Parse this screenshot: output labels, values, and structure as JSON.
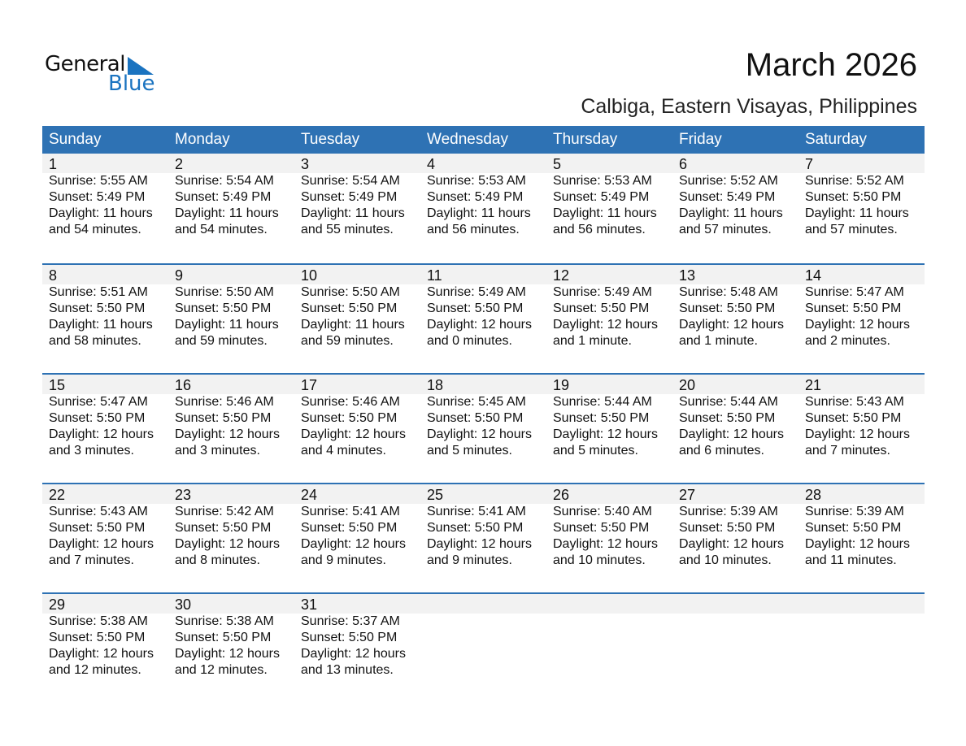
{
  "logo": {
    "text1": "General",
    "text2": "Blue",
    "color": "#1a73c0"
  },
  "header": {
    "title": "March 2026",
    "subtitle": "Calbiga, Eastern Visayas, Philippines"
  },
  "colors": {
    "accent": "#2e72b4",
    "band": "#f2f2f2"
  },
  "weekdays": [
    "Sunday",
    "Monday",
    "Tuesday",
    "Wednesday",
    "Thursday",
    "Friday",
    "Saturday"
  ],
  "weeks": [
    [
      {
        "d": "1",
        "sr": "Sunrise: 5:55 AM",
        "ss": "Sunset: 5:49 PM",
        "dl": "Daylight: 11 hours",
        "dm": "and 54 minutes."
      },
      {
        "d": "2",
        "sr": "Sunrise: 5:54 AM",
        "ss": "Sunset: 5:49 PM",
        "dl": "Daylight: 11 hours",
        "dm": "and 54 minutes."
      },
      {
        "d": "3",
        "sr": "Sunrise: 5:54 AM",
        "ss": "Sunset: 5:49 PM",
        "dl": "Daylight: 11 hours",
        "dm": "and 55 minutes."
      },
      {
        "d": "4",
        "sr": "Sunrise: 5:53 AM",
        "ss": "Sunset: 5:49 PM",
        "dl": "Daylight: 11 hours",
        "dm": "and 56 minutes."
      },
      {
        "d": "5",
        "sr": "Sunrise: 5:53 AM",
        "ss": "Sunset: 5:49 PM",
        "dl": "Daylight: 11 hours",
        "dm": "and 56 minutes."
      },
      {
        "d": "6",
        "sr": "Sunrise: 5:52 AM",
        "ss": "Sunset: 5:49 PM",
        "dl": "Daylight: 11 hours",
        "dm": "and 57 minutes."
      },
      {
        "d": "7",
        "sr": "Sunrise: 5:52 AM",
        "ss": "Sunset: 5:50 PM",
        "dl": "Daylight: 11 hours",
        "dm": "and 57 minutes."
      }
    ],
    [
      {
        "d": "8",
        "sr": "Sunrise: 5:51 AM",
        "ss": "Sunset: 5:50 PM",
        "dl": "Daylight: 11 hours",
        "dm": "and 58 minutes."
      },
      {
        "d": "9",
        "sr": "Sunrise: 5:50 AM",
        "ss": "Sunset: 5:50 PM",
        "dl": "Daylight: 11 hours",
        "dm": "and 59 minutes."
      },
      {
        "d": "10",
        "sr": "Sunrise: 5:50 AM",
        "ss": "Sunset: 5:50 PM",
        "dl": "Daylight: 11 hours",
        "dm": "and 59 minutes."
      },
      {
        "d": "11",
        "sr": "Sunrise: 5:49 AM",
        "ss": "Sunset: 5:50 PM",
        "dl": "Daylight: 12 hours",
        "dm": "and 0 minutes."
      },
      {
        "d": "12",
        "sr": "Sunrise: 5:49 AM",
        "ss": "Sunset: 5:50 PM",
        "dl": "Daylight: 12 hours",
        "dm": "and 1 minute."
      },
      {
        "d": "13",
        "sr": "Sunrise: 5:48 AM",
        "ss": "Sunset: 5:50 PM",
        "dl": "Daylight: 12 hours",
        "dm": "and 1 minute."
      },
      {
        "d": "14",
        "sr": "Sunrise: 5:47 AM",
        "ss": "Sunset: 5:50 PM",
        "dl": "Daylight: 12 hours",
        "dm": "and 2 minutes."
      }
    ],
    [
      {
        "d": "15",
        "sr": "Sunrise: 5:47 AM",
        "ss": "Sunset: 5:50 PM",
        "dl": "Daylight: 12 hours",
        "dm": "and 3 minutes."
      },
      {
        "d": "16",
        "sr": "Sunrise: 5:46 AM",
        "ss": "Sunset: 5:50 PM",
        "dl": "Daylight: 12 hours",
        "dm": "and 3 minutes."
      },
      {
        "d": "17",
        "sr": "Sunrise: 5:46 AM",
        "ss": "Sunset: 5:50 PM",
        "dl": "Daylight: 12 hours",
        "dm": "and 4 minutes."
      },
      {
        "d": "18",
        "sr": "Sunrise: 5:45 AM",
        "ss": "Sunset: 5:50 PM",
        "dl": "Daylight: 12 hours",
        "dm": "and 5 minutes."
      },
      {
        "d": "19",
        "sr": "Sunrise: 5:44 AM",
        "ss": "Sunset: 5:50 PM",
        "dl": "Daylight: 12 hours",
        "dm": "and 5 minutes."
      },
      {
        "d": "20",
        "sr": "Sunrise: 5:44 AM",
        "ss": "Sunset: 5:50 PM",
        "dl": "Daylight: 12 hours",
        "dm": "and 6 minutes."
      },
      {
        "d": "21",
        "sr": "Sunrise: 5:43 AM",
        "ss": "Sunset: 5:50 PM",
        "dl": "Daylight: 12 hours",
        "dm": "and 7 minutes."
      }
    ],
    [
      {
        "d": "22",
        "sr": "Sunrise: 5:43 AM",
        "ss": "Sunset: 5:50 PM",
        "dl": "Daylight: 12 hours",
        "dm": "and 7 minutes."
      },
      {
        "d": "23",
        "sr": "Sunrise: 5:42 AM",
        "ss": "Sunset: 5:50 PM",
        "dl": "Daylight: 12 hours",
        "dm": "and 8 minutes."
      },
      {
        "d": "24",
        "sr": "Sunrise: 5:41 AM",
        "ss": "Sunset: 5:50 PM",
        "dl": "Daylight: 12 hours",
        "dm": "and 9 minutes."
      },
      {
        "d": "25",
        "sr": "Sunrise: 5:41 AM",
        "ss": "Sunset: 5:50 PM",
        "dl": "Daylight: 12 hours",
        "dm": "and 9 minutes."
      },
      {
        "d": "26",
        "sr": "Sunrise: 5:40 AM",
        "ss": "Sunset: 5:50 PM",
        "dl": "Daylight: 12 hours",
        "dm": "and 10 minutes."
      },
      {
        "d": "27",
        "sr": "Sunrise: 5:39 AM",
        "ss": "Sunset: 5:50 PM",
        "dl": "Daylight: 12 hours",
        "dm": "and 10 minutes."
      },
      {
        "d": "28",
        "sr": "Sunrise: 5:39 AM",
        "ss": "Sunset: 5:50 PM",
        "dl": "Daylight: 12 hours",
        "dm": "and 11 minutes."
      }
    ],
    [
      {
        "d": "29",
        "sr": "Sunrise: 5:38 AM",
        "ss": "Sunset: 5:50 PM",
        "dl": "Daylight: 12 hours",
        "dm": "and 12 minutes."
      },
      {
        "d": "30",
        "sr": "Sunrise: 5:38 AM",
        "ss": "Sunset: 5:50 PM",
        "dl": "Daylight: 12 hours",
        "dm": "and 12 minutes."
      },
      {
        "d": "31",
        "sr": "Sunrise: 5:37 AM",
        "ss": "Sunset: 5:50 PM",
        "dl": "Daylight: 12 hours",
        "dm": "and 13 minutes."
      }
    ]
  ]
}
